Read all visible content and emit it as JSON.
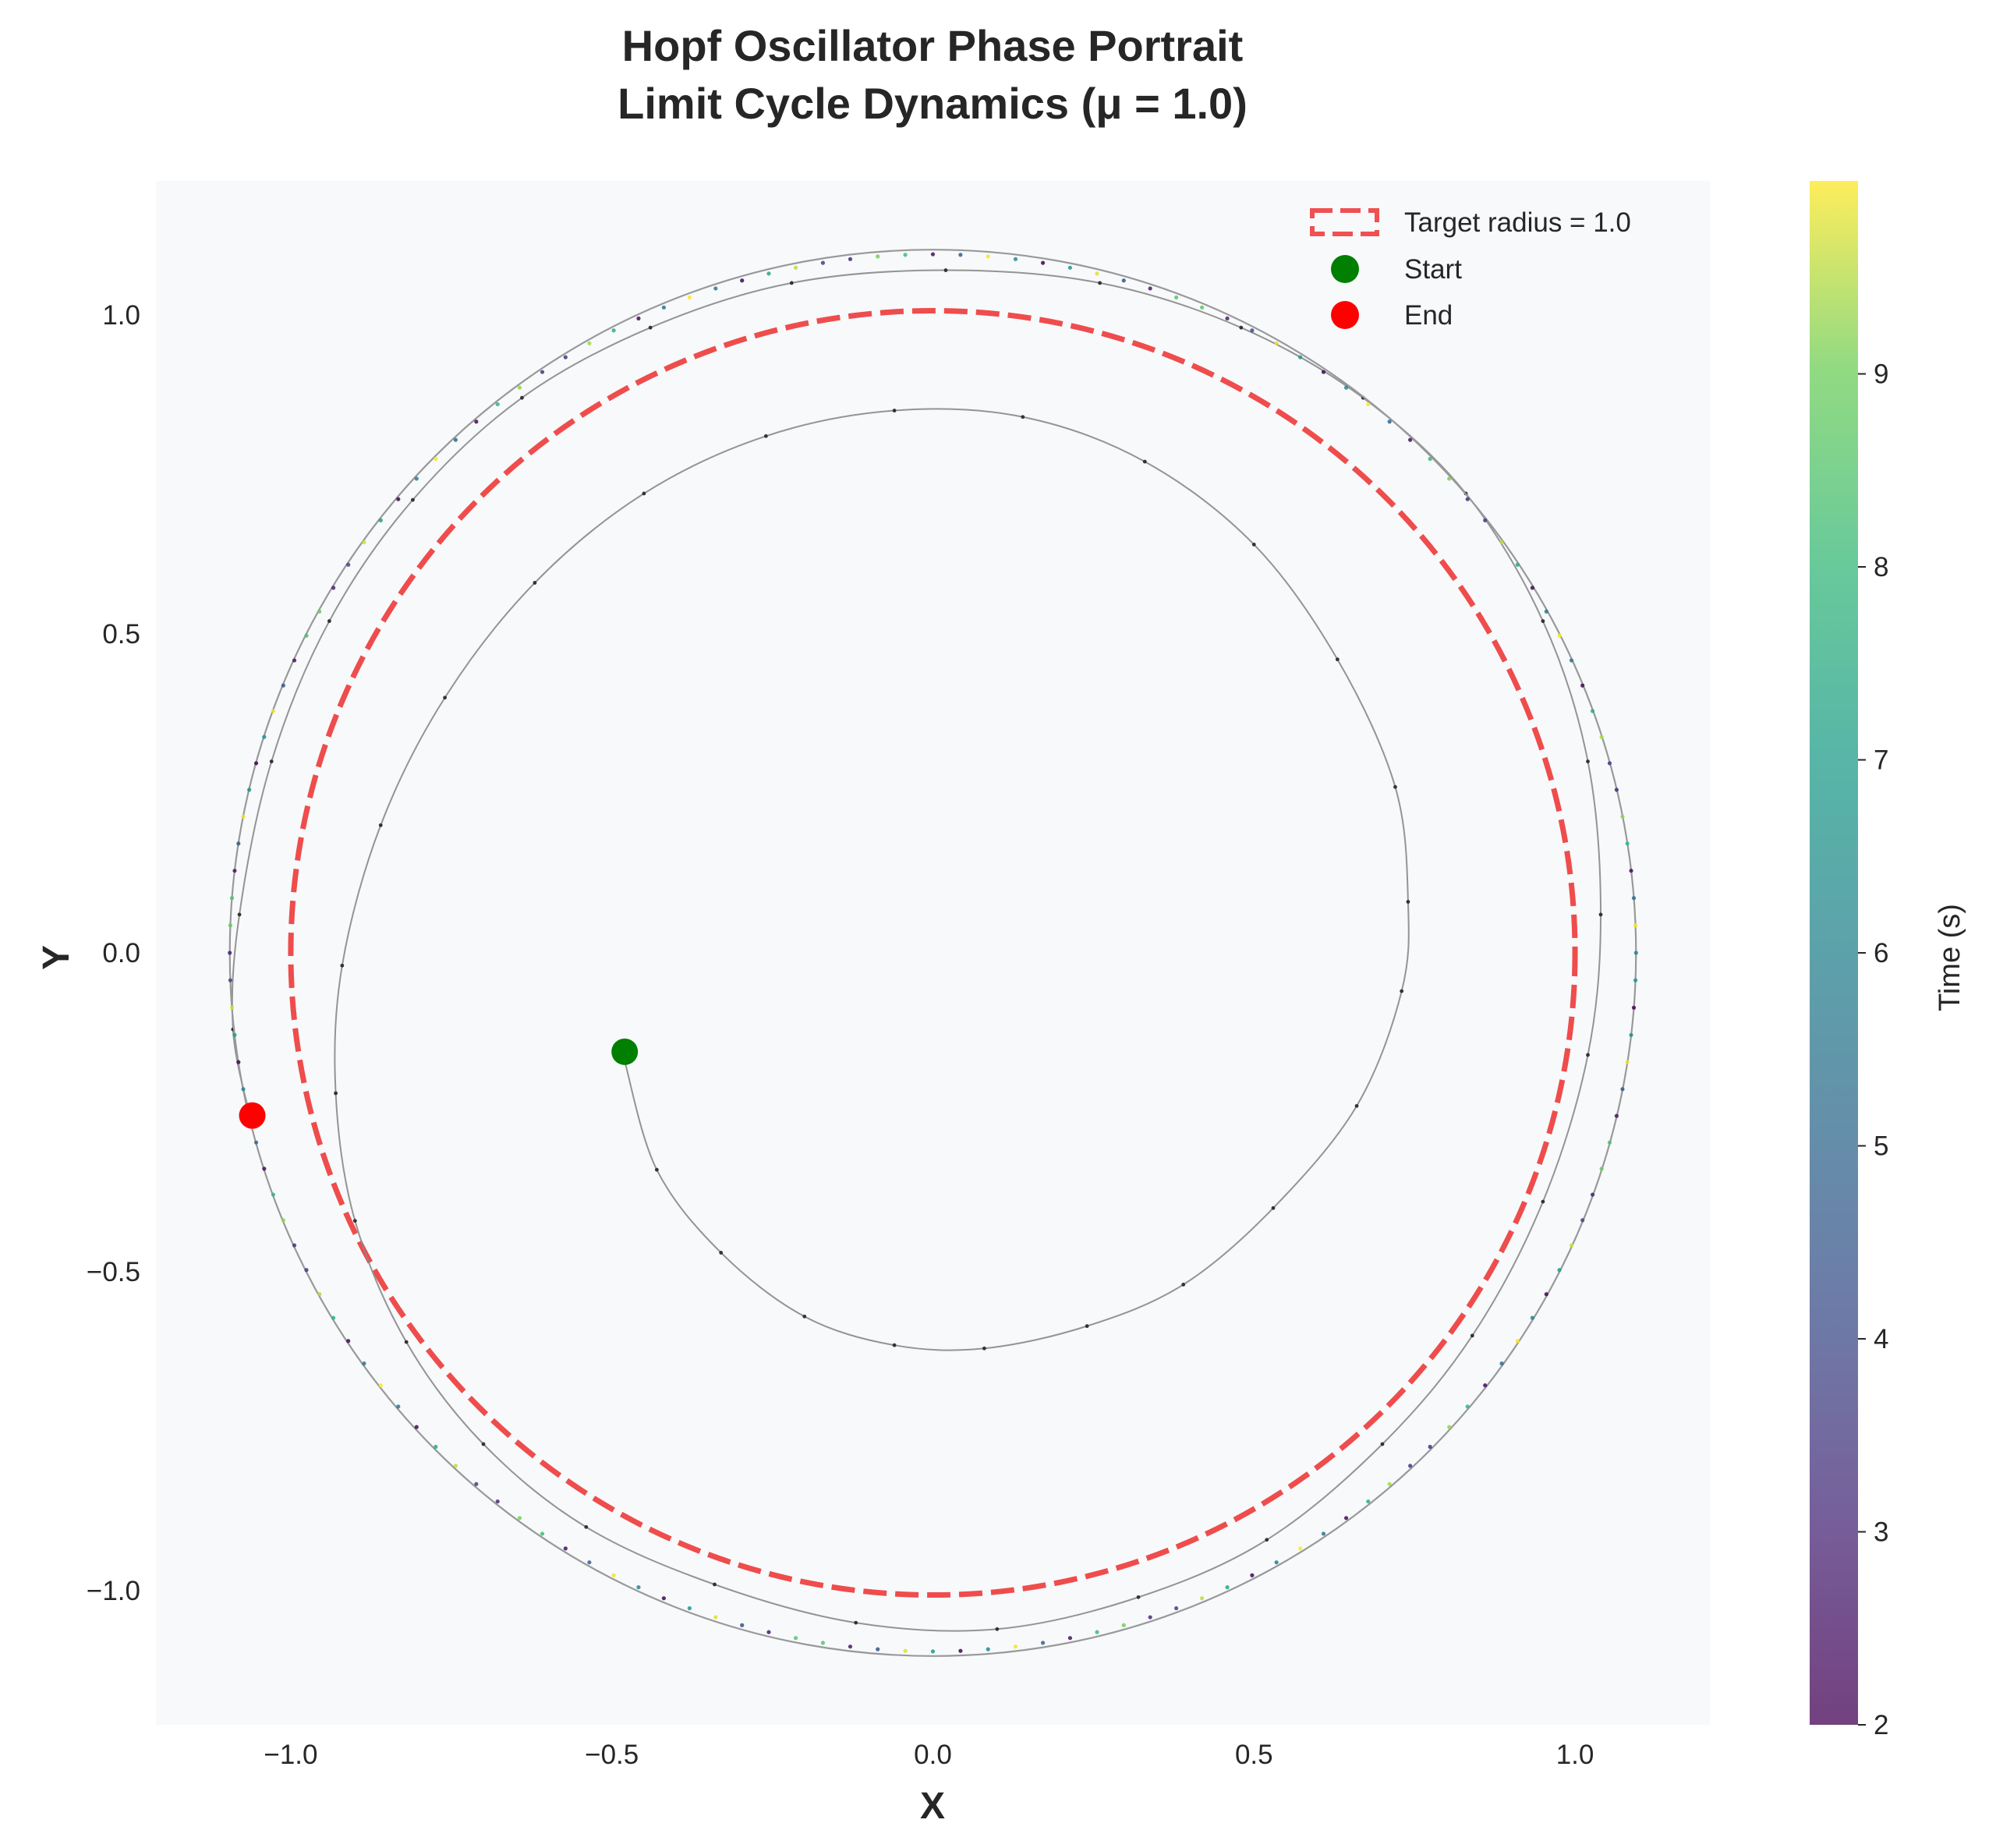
{
  "chart_data": {
    "type": "line",
    "title": "Hopf Oscillator Phase Portrait",
    "subtitle": "Limit Cycle Dynamics (μ = 1.0)",
    "xlabel": "X",
    "ylabel": "Y",
    "xlim": [
      -1.21,
      1.21
    ],
    "ylim": [
      -1.21,
      1.21
    ],
    "xticks": [
      -1.0,
      -0.5,
      0.0,
      0.5,
      1.0
    ],
    "yticks": [
      -1.0,
      -0.5,
      0.0,
      0.5,
      1.0
    ],
    "xtick_labels": [
      "−1.0",
      "−0.5",
      "0.0",
      "0.5",
      "1.0"
    ],
    "ytick_labels": [
      "−1.0",
      "−0.5",
      "0.0",
      "0.5",
      "1.0"
    ],
    "grid": false,
    "background": "#f7f9fb",
    "colorbar": {
      "label": "Time (s)",
      "range": [
        2,
        10
      ],
      "ticks": [
        2,
        3,
        4,
        5,
        6,
        7,
        8,
        9
      ],
      "tick_labels": [
        "2",
        "3",
        "4",
        "5",
        "6",
        "7",
        "8",
        "9"
      ],
      "colormap": "viridis"
    },
    "legend": {
      "placement": "top-right",
      "entries": [
        "Target radius = 1.0",
        "Start",
        "End"
      ]
    },
    "series": [
      {
        "name": "Target radius = 1.0",
        "kind": "dashed-circle",
        "center": [
          0.0,
          0.0
        ],
        "radius": 1.0,
        "color": "#ee3333"
      },
      {
        "kind": "trajectory",
        "color": "#888888",
        "points": [
          [
            -0.48,
            -0.17
          ],
          [
            -0.43,
            -0.34
          ],
          [
            -0.33,
            -0.47
          ],
          [
            -0.2,
            -0.57
          ],
          [
            -0.06,
            -0.615
          ],
          [
            0.08,
            -0.62
          ],
          [
            0.24,
            -0.585
          ],
          [
            0.39,
            -0.52
          ],
          [
            0.53,
            -0.4
          ],
          [
            0.66,
            -0.24
          ],
          [
            0.73,
            -0.06
          ],
          [
            0.74,
            0.08
          ],
          [
            0.72,
            0.26
          ],
          [
            0.63,
            0.46
          ],
          [
            0.5,
            0.64
          ],
          [
            0.33,
            0.77
          ],
          [
            0.14,
            0.84
          ],
          [
            -0.06,
            0.85
          ],
          [
            -0.26,
            0.81
          ],
          [
            -0.45,
            0.72
          ],
          [
            -0.62,
            0.58
          ],
          [
            -0.76,
            0.4
          ],
          [
            -0.86,
            0.2
          ],
          [
            -0.92,
            -0.02
          ],
          [
            -0.93,
            -0.22
          ],
          [
            -0.9,
            -0.42
          ],
          [
            -0.82,
            -0.61
          ],
          [
            -0.7,
            -0.77
          ],
          [
            -0.54,
            -0.9
          ],
          [
            -0.34,
            -0.99
          ],
          [
            -0.12,
            -1.05
          ],
          [
            0.1,
            -1.06
          ],
          [
            0.32,
            -1.01
          ],
          [
            0.52,
            -0.92
          ],
          [
            0.7,
            -0.77
          ],
          [
            0.84,
            -0.6
          ],
          [
            0.95,
            -0.39
          ],
          [
            1.02,
            -0.16
          ],
          [
            1.04,
            0.06
          ],
          [
            1.02,
            0.3
          ],
          [
            0.95,
            0.52
          ],
          [
            0.83,
            0.72
          ],
          [
            0.67,
            0.87
          ],
          [
            0.48,
            0.98
          ],
          [
            0.26,
            1.05
          ],
          [
            0.02,
            1.07
          ],
          [
            -0.22,
            1.05
          ],
          [
            -0.44,
            0.98
          ],
          [
            -0.64,
            0.87
          ],
          [
            -0.81,
            0.71
          ],
          [
            -0.94,
            0.52
          ],
          [
            -1.03,
            0.3
          ],
          [
            -1.08,
            0.06
          ],
          [
            -1.09,
            -0.12
          ],
          [
            -1.06,
            -0.27
          ]
        ]
      },
      {
        "kind": "limit-cycle",
        "center": [
          0.0,
          0.0
        ],
        "radius": 1.095,
        "color_by_time": true,
        "time_range": [
          2,
          10
        ]
      }
    ],
    "markers": [
      {
        "name": "Start",
        "x": -0.48,
        "y": -0.155,
        "color": "#007f00"
      },
      {
        "name": "End",
        "x": -1.06,
        "y": -0.255,
        "color": "#ff0000"
      }
    ]
  }
}
